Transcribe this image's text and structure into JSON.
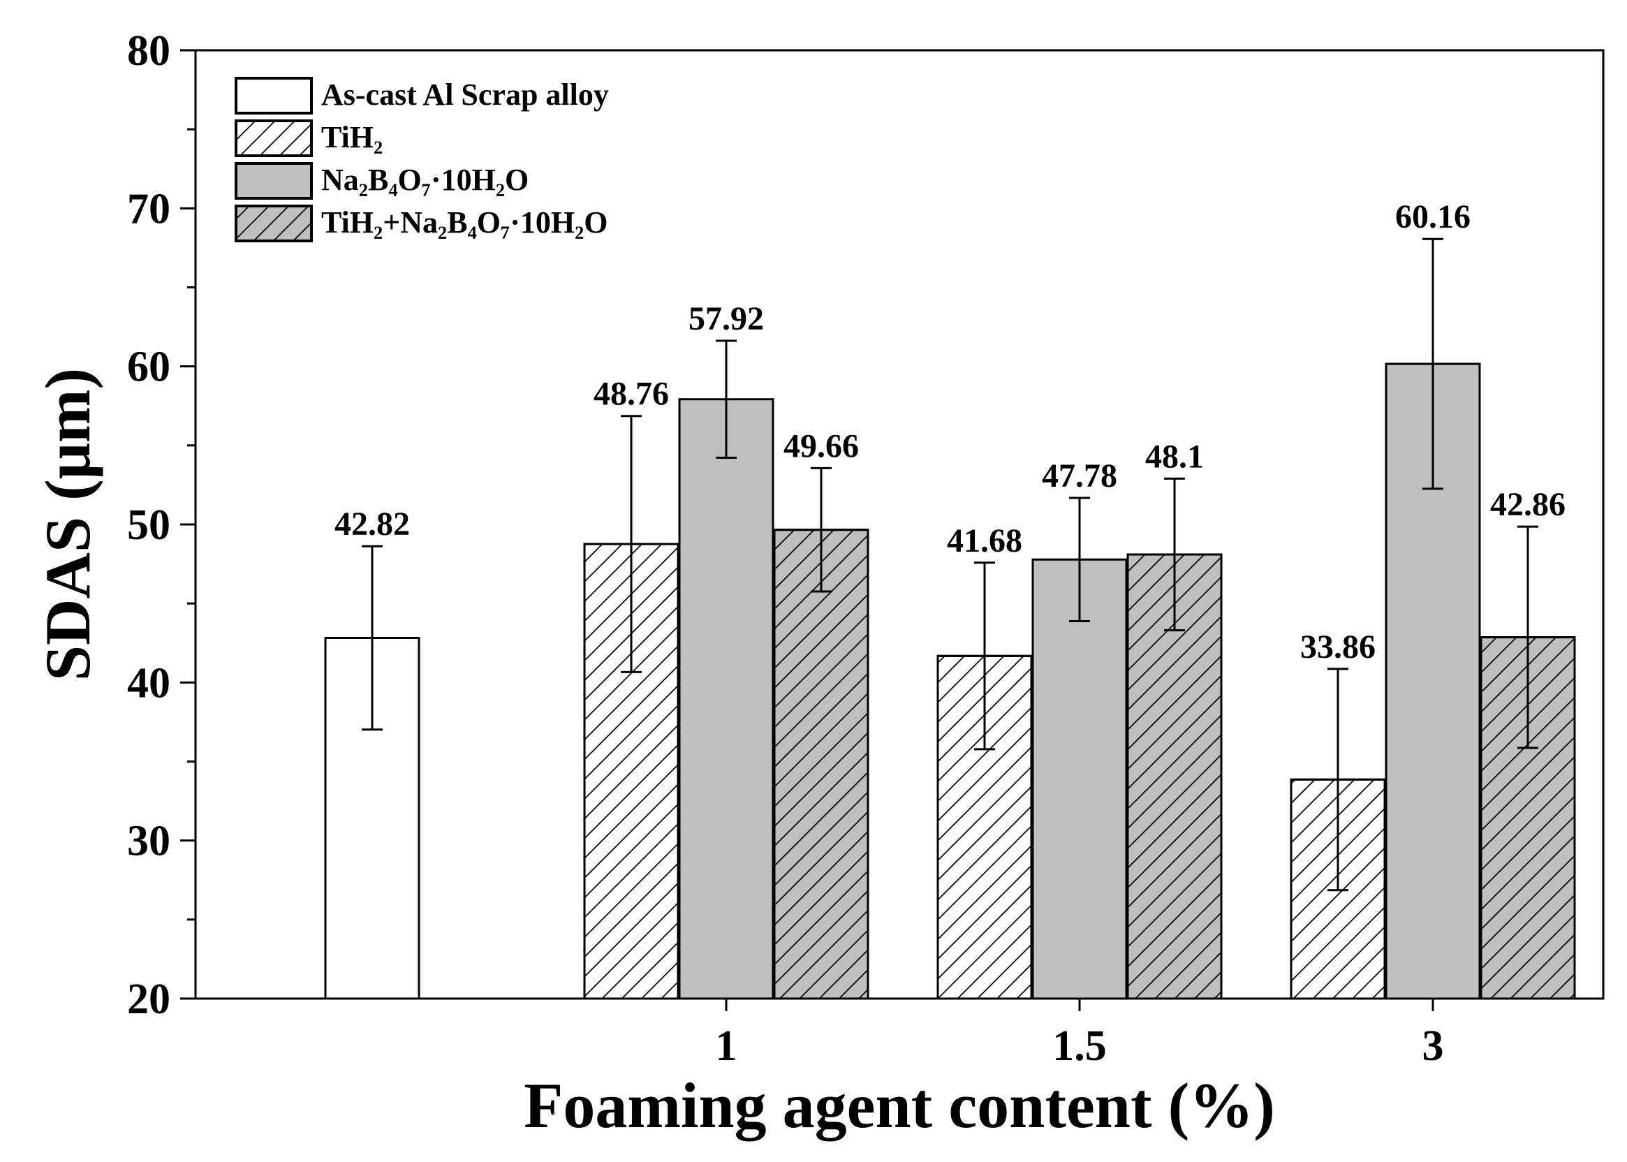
{
  "chart_data": {
    "type": "bar",
    "title": "",
    "xlabel": "Foaming agent content (%)",
    "ylabel": "SDAS (μm)",
    "ylim": [
      20,
      80
    ],
    "yticks": [
      "20",
      "30",
      "40",
      "50",
      "60",
      "70",
      "80"
    ],
    "categories": [
      "",
      "1",
      "1.5",
      "3"
    ],
    "legend_position": "top-left",
    "series": [
      {
        "name": "As-cast Al Scrap alloy",
        "fill": "#ffffff",
        "hatch": false,
        "values": [
          42.82,
          null,
          null,
          null
        ],
        "errors": [
          5.8,
          null,
          null,
          null
        ],
        "labels": [
          "42.82",
          null,
          null,
          null
        ]
      },
      {
        "name": "TiH₂",
        "fill": "#ffffff",
        "hatch": true,
        "values": [
          null,
          48.76,
          41.68,
          33.86
        ],
        "errors": [
          null,
          8.1,
          5.9,
          7.0
        ],
        "labels": [
          null,
          "48.76",
          "41.68",
          "33.86"
        ]
      },
      {
        "name": "Na₂B₄O₇·10H₂O",
        "fill": "#bfbfbf",
        "hatch": false,
        "values": [
          null,
          57.92,
          47.78,
          60.16
        ],
        "errors": [
          null,
          3.7,
          3.9,
          7.9
        ],
        "labels": [
          null,
          "57.92",
          "47.78",
          "60.16"
        ]
      },
      {
        "name": "TiH₂+Na₂B₄O₇·10H₂O",
        "fill": "#bfbfbf",
        "hatch": true,
        "values": [
          null,
          49.66,
          48.1,
          42.86
        ],
        "errors": [
          null,
          3.9,
          4.8,
          7.0
        ],
        "labels": [
          null,
          "49.66",
          "48.1",
          "42.86"
        ]
      }
    ]
  }
}
